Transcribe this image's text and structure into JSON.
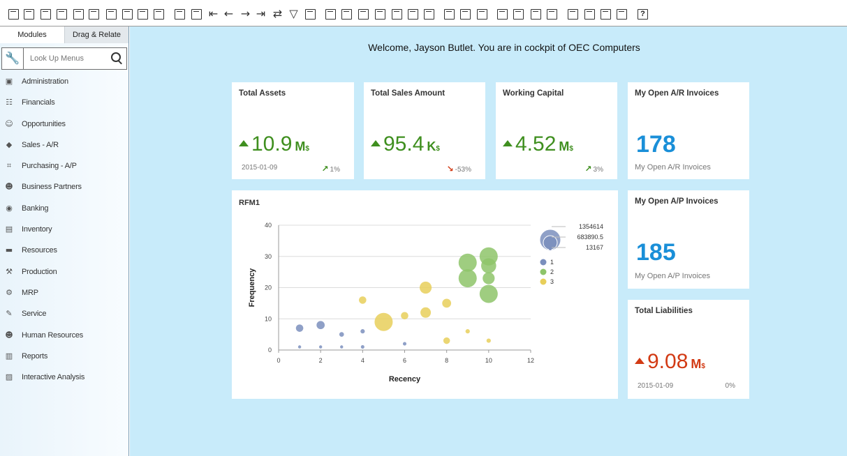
{
  "welcome": "Welcome, Jayson Butlet. You are in cockpit of OEC Computers",
  "sidebar": {
    "tabs": [
      "Modules",
      "Drag & Relate"
    ],
    "search_placeholder": "Look Up Menus",
    "items": [
      {
        "label": "Administration",
        "icon": "admin-icon"
      },
      {
        "label": "Financials",
        "icon": "financials-icon"
      },
      {
        "label": "Opportunities",
        "icon": "opportunities-icon"
      },
      {
        "label": "Sales - A/R",
        "icon": "sales-icon"
      },
      {
        "label": "Purchasing - A/P",
        "icon": "cart-icon"
      },
      {
        "label": "Business Partners",
        "icon": "person-icon"
      },
      {
        "label": "Banking",
        "icon": "banking-icon"
      },
      {
        "label": "Inventory",
        "icon": "inventory-icon"
      },
      {
        "label": "Resources",
        "icon": "resources-icon"
      },
      {
        "label": "Production",
        "icon": "production-icon"
      },
      {
        "label": "MRP",
        "icon": "mrp-icon"
      },
      {
        "label": "Service",
        "icon": "service-icon"
      },
      {
        "label": "Human Resources",
        "icon": "hr-icon"
      },
      {
        "label": "Reports",
        "icon": "reports-icon"
      },
      {
        "label": "Interactive Analysis",
        "icon": "analysis-icon"
      }
    ]
  },
  "kpis": [
    {
      "title": "Total Assets",
      "value": "10.9",
      "unit": "M",
      "currency": "$",
      "date": "2015-01-09",
      "delta": "1%",
      "trend": "up"
    },
    {
      "title": "Total Sales Amount",
      "value": "95.4",
      "unit": "K",
      "currency": "$",
      "date": "",
      "delta": "-53%",
      "trend": "down"
    },
    {
      "title": "Working Capital",
      "value": "4.52",
      "unit": "M",
      "currency": "$",
      "date": "",
      "delta": "3%",
      "trend": "up"
    }
  ],
  "ar_invoices": {
    "title": "My Open A/R Invoices",
    "value": "178",
    "subtitle": "My Open A/R Invoices"
  },
  "ap_invoices": {
    "title": "My Open A/P Invoices",
    "value": "185",
    "subtitle": "My Open A/P Invoices"
  },
  "liabilities": {
    "title": "Total Liabilities",
    "value": "9.08",
    "unit": "M",
    "currency": "$",
    "date": "2015-01-09",
    "delta": "0%"
  },
  "colors": {
    "green": "#3f8f1f",
    "red": "#d23a14",
    "blue": "#1a8fd8",
    "series1": "#7b8fbd",
    "series2": "#8ec46a",
    "series3": "#e8cf5a",
    "background": "#c8ebfa"
  },
  "chart_data": {
    "type": "scatter",
    "title": "RFM1",
    "xlabel": "Recency",
    "ylabel": "Frequency",
    "xlim": [
      0,
      12
    ],
    "ylim": [
      0,
      40
    ],
    "xticks": [
      0,
      2,
      4,
      6,
      8,
      10,
      12
    ],
    "yticks": [
      0,
      10,
      20,
      30,
      40
    ],
    "size_legend": [
      "1354614",
      "683890.5",
      "13167"
    ],
    "series": [
      {
        "name": "1",
        "color": "#7b8fbd",
        "points": [
          {
            "x": 1,
            "y": 7,
            "size": 0.3
          },
          {
            "x": 2,
            "y": 8,
            "size": 0.35
          },
          {
            "x": 3,
            "y": 5,
            "size": 0.12
          },
          {
            "x": 4,
            "y": 6,
            "size": 0.1
          },
          {
            "x": 1,
            "y": 1,
            "size": 0.02
          },
          {
            "x": 2,
            "y": 1,
            "size": 0.02
          },
          {
            "x": 3,
            "y": 1,
            "size": 0.02
          },
          {
            "x": 4,
            "y": 1,
            "size": 0.05
          },
          {
            "x": 6,
            "y": 2,
            "size": 0.05
          }
        ]
      },
      {
        "name": "2",
        "color": "#8ec46a",
        "points": [
          {
            "x": 9,
            "y": 28,
            "size": 1.0
          },
          {
            "x": 9,
            "y": 23,
            "size": 1.0
          },
          {
            "x": 10,
            "y": 30,
            "size": 1.0
          },
          {
            "x": 10,
            "y": 27,
            "size": 0.8
          },
          {
            "x": 10,
            "y": 23,
            "size": 0.6
          },
          {
            "x": 10,
            "y": 18,
            "size": 1.0
          }
        ]
      },
      {
        "name": "3",
        "color": "#e8cf5a",
        "points": [
          {
            "x": 5,
            "y": 9,
            "size": 1.0
          },
          {
            "x": 4,
            "y": 16,
            "size": 0.3
          },
          {
            "x": 6,
            "y": 11,
            "size": 0.3
          },
          {
            "x": 7,
            "y": 12,
            "size": 0.5
          },
          {
            "x": 7,
            "y": 20,
            "size": 0.6
          },
          {
            "x": 8,
            "y": 15,
            "size": 0.4
          },
          {
            "x": 8,
            "y": 3,
            "size": 0.25
          },
          {
            "x": 9,
            "y": 6,
            "size": 0.1
          },
          {
            "x": 10,
            "y": 3,
            "size": 0.1
          }
        ]
      }
    ]
  }
}
